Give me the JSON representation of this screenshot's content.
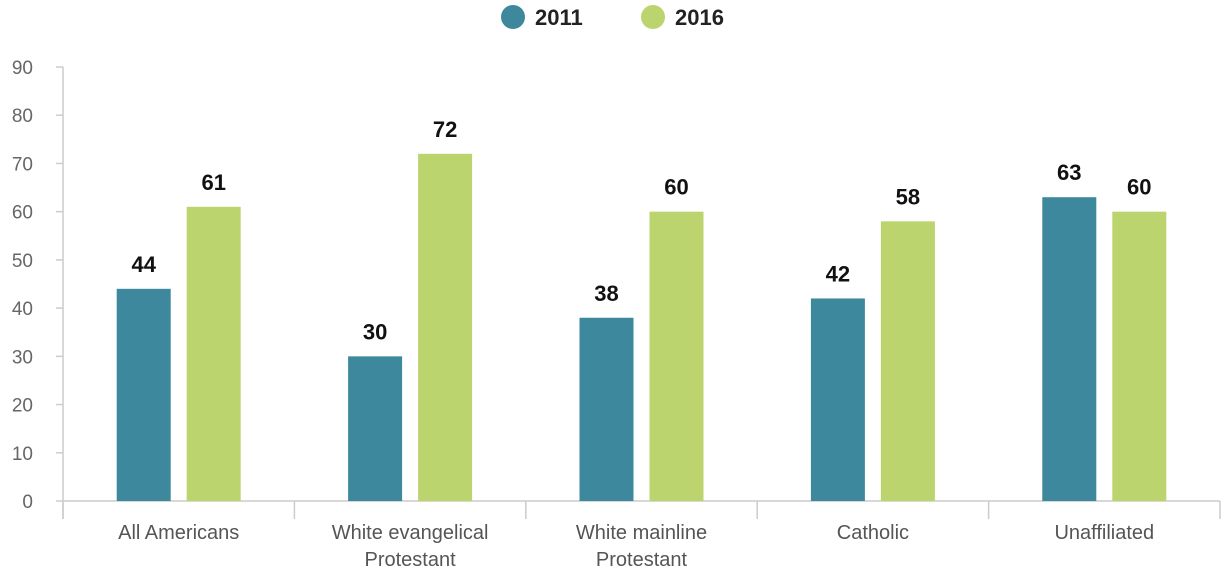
{
  "chart_data": {
    "type": "bar",
    "categories": [
      [
        "All Americans"
      ],
      [
        "White evangelical",
        "Protestant"
      ],
      [
        "White mainline",
        "Protestant"
      ],
      [
        "Catholic"
      ],
      [
        "Unaffiliated"
      ]
    ],
    "series": [
      {
        "name": "2011",
        "color": "#3d889c",
        "values": [
          44,
          30,
          38,
          42,
          63
        ]
      },
      {
        "name": "2016",
        "color": "#bcd46e",
        "values": [
          61,
          72,
          60,
          58,
          60
        ]
      }
    ],
    "ylim": [
      0,
      90
    ],
    "yticks": [
      0,
      10,
      20,
      30,
      40,
      50,
      60,
      70,
      80,
      90
    ],
    "grid": false,
    "legend_position": "top-center",
    "data_labels": true
  }
}
